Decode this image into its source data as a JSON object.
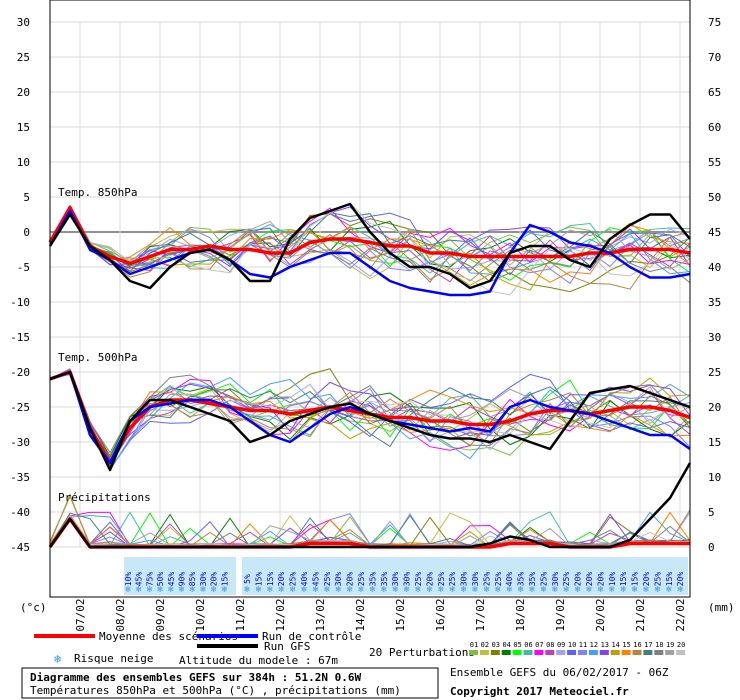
{
  "chart_data": {
    "type": "line",
    "title": "Diagramme des ensembles GEFS sur 384h : 51.2N 0.6W",
    "subtitle": "Températures 850hPa et 500hPa (°C) , précipitations (mm)",
    "left_axis_label": "(°c)",
    "right_axis_label": "(mm)",
    "left_ticks": [
      30,
      25,
      20,
      15,
      10,
      5,
      0,
      -5,
      -10,
      -15,
      -20,
      -25,
      -30,
      -35,
      -40,
      -45
    ],
    "right_ticks": [
      75,
      70,
      65,
      60,
      55,
      50,
      45,
      40,
      35,
      30,
      25,
      20,
      15,
      10,
      5,
      0
    ],
    "ylim_temperature": [
      -45,
      30
    ],
    "ylim_precipitation": [
      0,
      75
    ],
    "x_dates": [
      "07/02",
      "08/02",
      "09/02",
      "10/02",
      "11/02",
      "12/02",
      "13/02",
      "14/02",
      "15/02",
      "16/02",
      "17/02",
      "18/02",
      "19/02",
      "20/02",
      "21/02",
      "22/02"
    ],
    "x": [
      0,
      12,
      24,
      36,
      48,
      60,
      72,
      84,
      96,
      108,
      120,
      132,
      144,
      156,
      168,
      180,
      192,
      204,
      216,
      228,
      240,
      252,
      264,
      276,
      288,
      300,
      312,
      324,
      336,
      348,
      360,
      372,
      384
    ],
    "x_unit": "heures",
    "panel_labels": {
      "t850": "Temp. 850hPa",
      "t500": "Temp. 500hPa",
      "precip": "Précipitations"
    },
    "series": [
      {
        "name": "Moyenne des scénarios",
        "color": "#ff0000",
        "panel": "t850",
        "values": [
          -1.5,
          3.5,
          -2,
          -3.5,
          -4.5,
          -3.5,
          -2.5,
          -2.5,
          -2,
          -2.5,
          -2.5,
          -3,
          -3,
          -1.5,
          -1,
          -1,
          -1.5,
          -2,
          -2,
          -3,
          -3,
          -3.5,
          -3.5,
          -3.5,
          -3.5,
          -3.5,
          -3.5,
          -3,
          -3,
          -2.5,
          -2.5,
          -2.5,
          -3
        ]
      },
      {
        "name": "Run de contrôle",
        "color": "#0000ff",
        "panel": "t850",
        "values": [
          -2,
          3,
          -2.5,
          -4,
          -6,
          -5,
          -4,
          -3,
          -2.5,
          -4,
          -6,
          -6.5,
          -5,
          -4,
          -3,
          -3,
          -5,
          -7,
          -8,
          -8.5,
          -9,
          -9,
          -8.5,
          -3,
          1,
          0,
          -1.5,
          -2,
          -3,
          -5,
          -6.5,
          -6.5,
          -6
        ]
      },
      {
        "name": "Run GFS",
        "color": "#000000",
        "panel": "t850",
        "values": [
          -2,
          2.5,
          -2,
          -4,
          -7,
          -8,
          -5,
          -3,
          -2.5,
          -4,
          -7,
          -7,
          -1,
          2,
          3,
          4,
          0,
          -3,
          -5,
          -5,
          -6,
          -8,
          -7,
          -3,
          -2,
          -2,
          -4,
          -5,
          -1,
          1,
          2.5,
          2.5,
          -1
        ]
      },
      {
        "name": "Moyenne des scénarios",
        "color": "#ff0000",
        "panel": "t500",
        "values": [
          -21,
          -20,
          -28,
          -33,
          -28,
          -25,
          -24,
          -24,
          -24.5,
          -25,
          -25.5,
          -25.5,
          -26,
          -25.5,
          -25,
          -25.5,
          -26,
          -26.5,
          -26.5,
          -27,
          -27,
          -27.5,
          -27.5,
          -27,
          -26,
          -25.5,
          -25.5,
          -26,
          -25.5,
          -25,
          -25,
          -25.5,
          -26.5
        ]
      },
      {
        "name": "Run de contrôle",
        "color": "#0000ff",
        "panel": "t500",
        "values": [
          -21,
          -20,
          -29,
          -33,
          -27,
          -25,
          -24.5,
          -24,
          -24,
          -25,
          -27,
          -29,
          -30,
          -28,
          -26,
          -25,
          -26,
          -27,
          -27.5,
          -28,
          -28.5,
          -28,
          -28.5,
          -25,
          -24,
          -25,
          -25.5,
          -26,
          -27,
          -28,
          -29,
          -29,
          -31
        ]
      },
      {
        "name": "Run GFS",
        "color": "#000000",
        "panel": "t500",
        "values": [
          -21,
          -20,
          -28,
          -34,
          -27,
          -24,
          -24,
          -25,
          -26,
          -27,
          -30,
          -29,
          -27,
          -26,
          -25,
          -24.5,
          -26,
          -27,
          -28,
          -29,
          -29.5,
          -29.5,
          -30,
          -29,
          -30,
          -31,
          -27,
          -23,
          -22.5,
          -22,
          -23,
          -24,
          -25
        ]
      },
      {
        "name": "Moyenne des scénarios",
        "color": "#ff0000",
        "panel": "precip",
        "values": [
          0,
          4,
          0,
          0,
          0,
          0,
          0,
          0,
          0,
          0,
          0,
          0,
          0,
          0.5,
          0.5,
          0.5,
          0,
          0,
          0,
          0,
          0,
          0,
          0,
          0.5,
          0.5,
          0.5,
          0,
          0,
          0,
          0.5,
          0.5,
          0.5,
          0.5
        ]
      },
      {
        "name": "Run GFS",
        "color": "#000000",
        "panel": "precip",
        "values": [
          0,
          4,
          0,
          0,
          0,
          0,
          0,
          0,
          0,
          0,
          0,
          0,
          0,
          0,
          0,
          0,
          0,
          0,
          0,
          0,
          0,
          0,
          0.5,
          1.5,
          1,
          0,
          0,
          0,
          0,
          1,
          4,
          7,
          12
        ]
      }
    ],
    "snow_risk_percent": [
      "10%",
      "45%",
      "75%",
      "50%",
      "45%",
      "90%",
      "85%",
      "30%",
      "20%",
      "15%",
      "5%",
      "15%",
      "15%",
      "20%",
      "25%",
      "40%",
      "45%",
      "25%",
      "30%",
      "20%",
      "25%",
      "35%",
      "35%",
      "30%",
      "30%",
      "25%",
      "20%",
      "25%",
      "25%",
      "30%",
      "30%",
      "25%",
      "25%",
      "40%",
      "35%",
      "35%",
      "25%",
      "30%",
      "25%",
      "20%",
      "20%",
      "20%",
      "10%",
      "15%",
      "15%",
      "20%",
      "25%",
      "15%",
      "20%"
    ],
    "legend": {
      "mean": "Moyenne des scénarios",
      "control": "Run de contrôle",
      "gfs": "Run GFS",
      "perturbations": "20 Perturbations",
      "snow_risk": "Risque neige",
      "altitude": "Altitude du modele : 67m",
      "perturbation_numbers": [
        "01",
        "02",
        "03",
        "04",
        "05",
        "06",
        "07",
        "08",
        "09",
        "10",
        "11",
        "12",
        "13",
        "14",
        "15",
        "16",
        "17",
        "18",
        "19",
        "20"
      ],
      "perturbation_colors": [
        "#7fbf3f",
        "#bfbf3f",
        "#808000",
        "#008000",
        "#00ff00",
        "#3fbf9f",
        "#ff00ff",
        "#bf3fbf",
        "#a0a0ff",
        "#6060ff",
        "#8080ff",
        "#40a0ff",
        "#8040ff",
        "#c0a000",
        "#ff8000",
        "#c08040",
        "#408080",
        "#808080",
        "#a0a0a0",
        "#c0c0c0"
      ]
    },
    "footer": {
      "ensemble": "Ensemble GEFS du 06/02/2017 - 06Z",
      "copyright": "Copyright 2017 Meteociel.fr"
    }
  }
}
